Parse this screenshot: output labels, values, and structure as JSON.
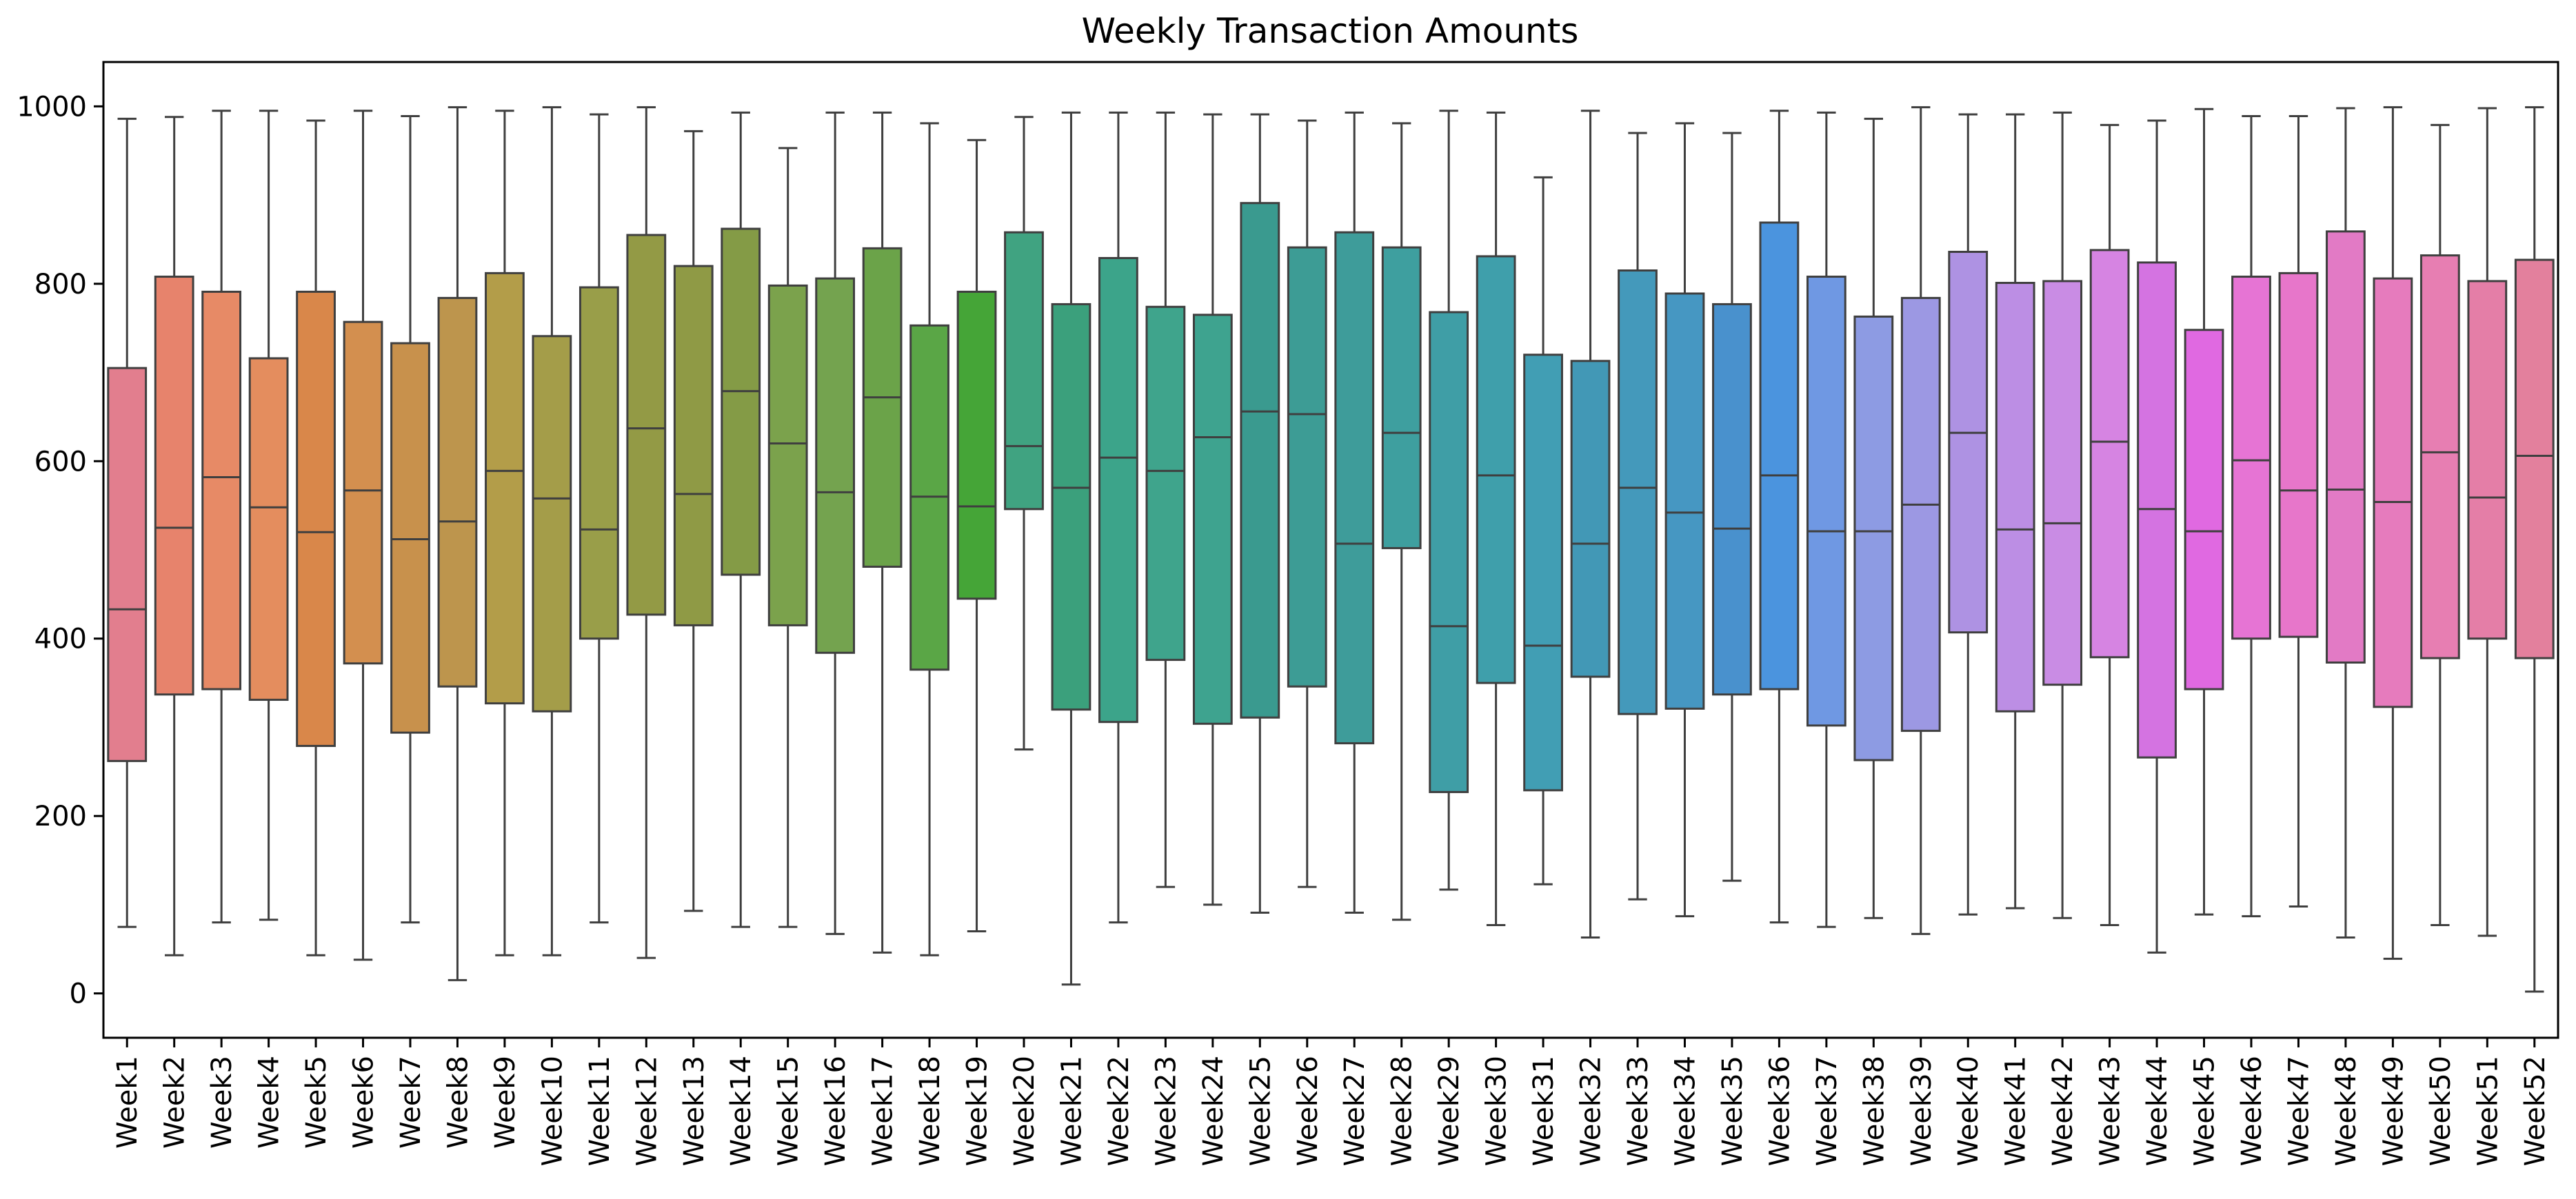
{
  "chart_data": {
    "type": "box",
    "title": "Weekly Transaction Amounts",
    "xlabel": "",
    "ylabel": "",
    "ylim": [
      -50,
      1050
    ],
    "yticks": [
      0,
      200,
      400,
      600,
      800,
      1000
    ],
    "ytick_labels": [
      "0",
      "200",
      "400",
      "600",
      "800",
      "1000"
    ],
    "grid": false,
    "legend": "none",
    "colors": {
      "box_edge": "#3f3f3f",
      "axes": "#000000",
      "background": "#ffffff"
    },
    "categories": [
      "Week1",
      "Week2",
      "Week3",
      "Week4",
      "Week5",
      "Week6",
      "Week7",
      "Week8",
      "Week9",
      "Week10",
      "Week11",
      "Week12",
      "Week13",
      "Week14",
      "Week15",
      "Week16",
      "Week17",
      "Week18",
      "Week19",
      "Week20",
      "Week21",
      "Week22",
      "Week23",
      "Week24",
      "Week25",
      "Week26",
      "Week27",
      "Week28",
      "Week29",
      "Week30",
      "Week31",
      "Week32",
      "Week33",
      "Week34",
      "Week35",
      "Week36",
      "Week37",
      "Week38",
      "Week39",
      "Week40",
      "Week41",
      "Week42",
      "Week43",
      "Week44",
      "Week45",
      "Week46",
      "Week47",
      "Week48",
      "Week49",
      "Week50",
      "Week51",
      "Week52"
    ],
    "box_colors": [
      "#e27e8e",
      "#e7836c",
      "#e78a66",
      "#e48d5e",
      "#d9874a",
      "#d38f4f",
      "#c8914c",
      "#bd954d",
      "#b39d49",
      "#a49d49",
      "#999e49",
      "#939a45",
      "#8f9a45",
      "#849b46",
      "#7ba24c",
      "#74a34f",
      "#6ba349",
      "#5aa646",
      "#45a537",
      "#40a381",
      "#3ba07c",
      "#3ca48a",
      "#3fa48c",
      "#3ea38f",
      "#3a9a8f",
      "#3d9c95",
      "#3e9c9a",
      "#3e9f9f",
      "#3f9ea6",
      "#3f9fab",
      "#419eb4",
      "#4298b6",
      "#4499bb",
      "#4697c2",
      "#4991cd",
      "#4b94de",
      "#6f98e3",
      "#8d9be3",
      "#9c98e3",
      "#ae92e3",
      "#bc8ee4",
      "#c98ce4",
      "#d684e2",
      "#d473e1",
      "#e069e1",
      "#e674d4",
      "#e776ca",
      "#e27ac5",
      "#e67bbd",
      "#e77eb2",
      "#e47ea7",
      "#e3809d"
    ],
    "series": [
      {
        "category": "Week1",
        "whisker_low": 75,
        "q1": 262,
        "median": 433,
        "q3": 705,
        "whisker_high": 986
      },
      {
        "category": "Week2",
        "whisker_low": 43,
        "q1": 337,
        "median": 525,
        "q3": 808,
        "whisker_high": 988
      },
      {
        "category": "Week3",
        "whisker_low": 80,
        "q1": 343,
        "median": 582,
        "q3": 791,
        "whisker_high": 995
      },
      {
        "category": "Week4",
        "whisker_low": 83,
        "q1": 331,
        "median": 548,
        "q3": 716,
        "whisker_high": 995
      },
      {
        "category": "Week5",
        "whisker_low": 43,
        "q1": 279,
        "median": 520,
        "q3": 791,
        "whisker_high": 984
      },
      {
        "category": "Week6",
        "whisker_low": 38,
        "q1": 372,
        "median": 567,
        "q3": 757,
        "whisker_high": 995
      },
      {
        "category": "Week7",
        "whisker_low": 80,
        "q1": 294,
        "median": 512,
        "q3": 733,
        "whisker_high": 989
      },
      {
        "category": "Week8",
        "whisker_low": 15,
        "q1": 346,
        "median": 532,
        "q3": 784,
        "whisker_high": 999
      },
      {
        "category": "Week9",
        "whisker_low": 43,
        "q1": 327,
        "median": 589,
        "q3": 812,
        "whisker_high": 995
      },
      {
        "category": "Week10",
        "whisker_low": 43,
        "q1": 318,
        "median": 558,
        "q3": 741,
        "whisker_high": 999
      },
      {
        "category": "Week11",
        "whisker_low": 80,
        "q1": 400,
        "median": 523,
        "q3": 796,
        "whisker_high": 991
      },
      {
        "category": "Week12",
        "whisker_low": 40,
        "q1": 427,
        "median": 637,
        "q3": 855,
        "whisker_high": 999
      },
      {
        "category": "Week13",
        "whisker_low": 93,
        "q1": 415,
        "median": 563,
        "q3": 820,
        "whisker_high": 972
      },
      {
        "category": "Week14",
        "whisker_low": 75,
        "q1": 472,
        "median": 679,
        "q3": 862,
        "whisker_high": 993
      },
      {
        "category": "Week15",
        "whisker_low": 75,
        "q1": 415,
        "median": 620,
        "q3": 798,
        "whisker_high": 953
      },
      {
        "category": "Week16",
        "whisker_low": 67,
        "q1": 384,
        "median": 565,
        "q3": 806,
        "whisker_high": 993
      },
      {
        "category": "Week17",
        "whisker_low": 46,
        "q1": 481,
        "median": 672,
        "q3": 840,
        "whisker_high": 993
      },
      {
        "category": "Week18",
        "whisker_low": 43,
        "q1": 365,
        "median": 560,
        "q3": 753,
        "whisker_high": 981
      },
      {
        "category": "Week19",
        "whisker_low": 70,
        "q1": 445,
        "median": 549,
        "q3": 791,
        "whisker_high": 962
      },
      {
        "category": "Week20",
        "whisker_low": 275,
        "q1": 546,
        "median": 617,
        "q3": 858,
        "whisker_high": 988
      },
      {
        "category": "Week21",
        "whisker_low": 10,
        "q1": 320,
        "median": 570,
        "q3": 777,
        "whisker_high": 993
      },
      {
        "category": "Week22",
        "whisker_low": 80,
        "q1": 306,
        "median": 604,
        "q3": 829,
        "whisker_high": 993
      },
      {
        "category": "Week23",
        "whisker_low": 120,
        "q1": 376,
        "median": 589,
        "q3": 774,
        "whisker_high": 993
      },
      {
        "category": "Week24",
        "whisker_low": 100,
        "q1": 304,
        "median": 627,
        "q3": 765,
        "whisker_high": 991
      },
      {
        "category": "Week25",
        "whisker_low": 91,
        "q1": 311,
        "median": 656,
        "q3": 891,
        "whisker_high": 991
      },
      {
        "category": "Week26",
        "whisker_low": 120,
        "q1": 346,
        "median": 653,
        "q3": 841,
        "whisker_high": 984
      },
      {
        "category": "Week27",
        "whisker_low": 91,
        "q1": 282,
        "median": 507,
        "q3": 858,
        "whisker_high": 993
      },
      {
        "category": "Week28",
        "whisker_low": 83,
        "q1": 502,
        "median": 632,
        "q3": 841,
        "whisker_high": 981
      },
      {
        "category": "Week29",
        "whisker_low": 117,
        "q1": 227,
        "median": 414,
        "q3": 768,
        "whisker_high": 995
      },
      {
        "category": "Week30",
        "whisker_low": 77,
        "q1": 350,
        "median": 584,
        "q3": 831,
        "whisker_high": 993
      },
      {
        "category": "Week31",
        "whisker_low": 123,
        "q1": 229,
        "median": 392,
        "q3": 720,
        "whisker_high": 920
      },
      {
        "category": "Week32",
        "whisker_low": 63,
        "q1": 357,
        "median": 507,
        "q3": 713,
        "whisker_high": 995
      },
      {
        "category": "Week33",
        "whisker_low": 106,
        "q1": 315,
        "median": 570,
        "q3": 815,
        "whisker_high": 970
      },
      {
        "category": "Week34",
        "whisker_low": 87,
        "q1": 321,
        "median": 542,
        "q3": 789,
        "whisker_high": 981
      },
      {
        "category": "Week35",
        "whisker_low": 127,
        "q1": 337,
        "median": 524,
        "q3": 777,
        "whisker_high": 970
      },
      {
        "category": "Week36",
        "whisker_low": 80,
        "q1": 343,
        "median": 584,
        "q3": 869,
        "whisker_high": 995
      },
      {
        "category": "Week37",
        "whisker_low": 75,
        "q1": 302,
        "median": 521,
        "q3": 808,
        "whisker_high": 993
      },
      {
        "category": "Week38",
        "whisker_low": 85,
        "q1": 263,
        "median": 521,
        "q3": 763,
        "whisker_high": 986
      },
      {
        "category": "Week39",
        "whisker_low": 67,
        "q1": 296,
        "median": 551,
        "q3": 784,
        "whisker_high": 999
      },
      {
        "category": "Week40",
        "whisker_low": 89,
        "q1": 407,
        "median": 632,
        "q3": 836,
        "whisker_high": 991
      },
      {
        "category": "Week41",
        "whisker_low": 96,
        "q1": 318,
        "median": 523,
        "q3": 801,
        "whisker_high": 991
      },
      {
        "category": "Week42",
        "whisker_low": 85,
        "q1": 348,
        "median": 530,
        "q3": 803,
        "whisker_high": 993
      },
      {
        "category": "Week43",
        "whisker_low": 77,
        "q1": 379,
        "median": 622,
        "q3": 838,
        "whisker_high": 979
      },
      {
        "category": "Week44",
        "whisker_low": 46,
        "q1": 266,
        "median": 546,
        "q3": 824,
        "whisker_high": 984
      },
      {
        "category": "Week45",
        "whisker_low": 89,
        "q1": 343,
        "median": 521,
        "q3": 748,
        "whisker_high": 997
      },
      {
        "category": "Week46",
        "whisker_low": 87,
        "q1": 400,
        "median": 601,
        "q3": 808,
        "whisker_high": 989
      },
      {
        "category": "Week47",
        "whisker_low": 98,
        "q1": 402,
        "median": 567,
        "q3": 812,
        "whisker_high": 989
      },
      {
        "category": "Week48",
        "whisker_low": 63,
        "q1": 373,
        "median": 568,
        "q3": 859,
        "whisker_high": 998
      },
      {
        "category": "Week49",
        "whisker_low": 39,
        "q1": 323,
        "median": 554,
        "q3": 806,
        "whisker_high": 999
      },
      {
        "category": "Week50",
        "whisker_low": 77,
        "q1": 378,
        "median": 610,
        "q3": 832,
        "whisker_high": 979
      },
      {
        "category": "Week51",
        "whisker_low": 65,
        "q1": 400,
        "median": 559,
        "q3": 803,
        "whisker_high": 998
      },
      {
        "category": "Week52",
        "whisker_low": 2,
        "q1": 378,
        "median": 606,
        "q3": 827,
        "whisker_high": 999
      }
    ]
  }
}
